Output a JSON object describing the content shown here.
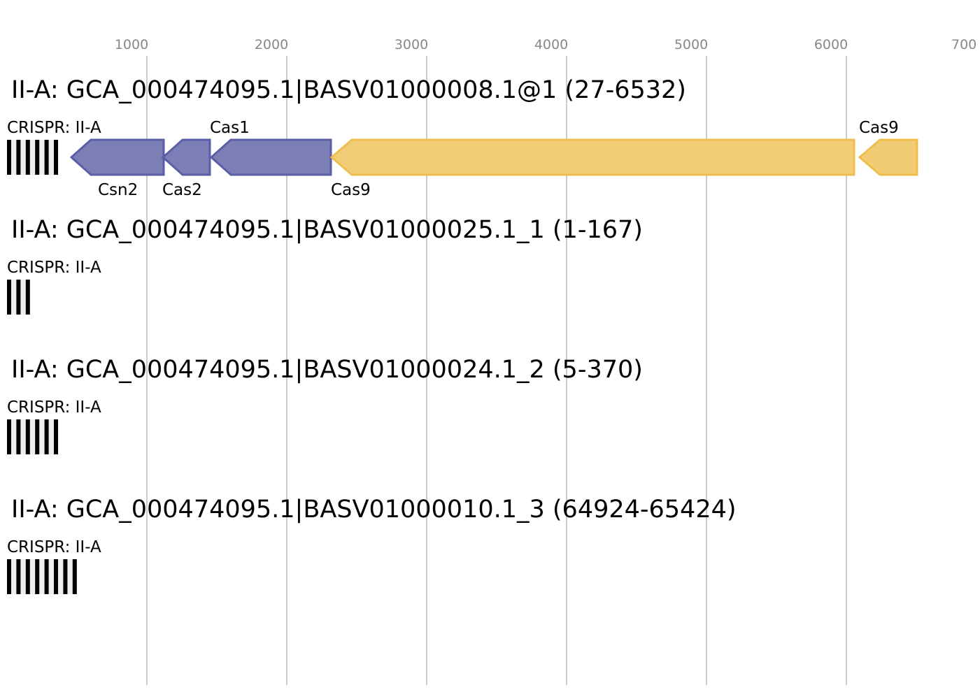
{
  "axis": {
    "ticks": [
      "1000",
      "2000",
      "3000",
      "4000",
      "5000",
      "6000",
      "700"
    ]
  },
  "colors": {
    "class1": "#7b7fb5",
    "class1_stroke": "#5a5ea6",
    "effector": "#f1cc74",
    "effector_stroke": "#eebd4a",
    "grid": "#bbbbbb"
  },
  "loci": [
    {
      "title": "II-A: GCA_000474095.1|BASV01000008.1@1 (27-6532)",
      "crispr_label": "CRISPR: II-A",
      "genes": [
        {
          "name": "Csn2"
        },
        {
          "name": "Cas2"
        },
        {
          "name": "Cas1"
        },
        {
          "name": "Cas9"
        },
        {
          "name": "Cas9"
        }
      ]
    },
    {
      "title": "II-A: GCA_000474095.1|BASV01000025.1_1 (1-167)",
      "crispr_label": "CRISPR: II-A",
      "genes": []
    },
    {
      "title": "II-A: GCA_000474095.1|BASV01000024.1_2 (5-370)",
      "crispr_label": "CRISPR: II-A",
      "genes": []
    },
    {
      "title": "II-A: GCA_000474095.1|BASV01000010.1_3 (64924-65424)",
      "crispr_label": "CRISPR: II-A",
      "genes": []
    }
  ]
}
